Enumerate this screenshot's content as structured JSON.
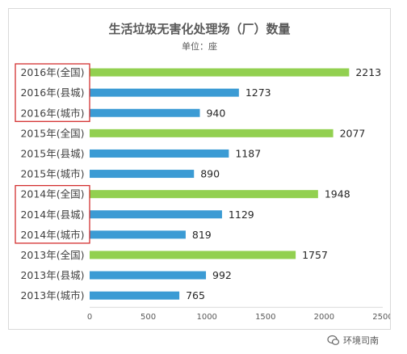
{
  "chart_data": {
    "type": "bar",
    "orientation": "horizontal",
    "title": "生活垃圾无害化处理场（厂）数量",
    "subtitle": "单位：座",
    "categories": [
      "2016年(全国)",
      "2016年(县城)",
      "2016年(城市)",
      "2015年(全国)",
      "2015年(县城)",
      "2015年(城市)",
      "2014年(全国)",
      "2014年(县城)",
      "2014年(城市)",
      "2013年(全国)",
      "2013年(县城)",
      "2013年(城市)"
    ],
    "values": [
      2213,
      1273,
      940,
      2077,
      1187,
      890,
      1948,
      1129,
      819,
      1757,
      992,
      765
    ],
    "bar_colors": [
      "#92d050",
      "#3b9bd4",
      "#3b9bd4",
      "#92d050",
      "#3b9bd4",
      "#3b9bd4",
      "#92d050",
      "#3b9bd4",
      "#3b9bd4",
      "#92d050",
      "#3b9bd4",
      "#3b9bd4"
    ],
    "highlight_groups": [
      [
        0,
        2
      ],
      [
        6,
        8
      ]
    ],
    "highlight_color": "#d32f2f",
    "xlim": [
      0,
      2500
    ],
    "xticks": [
      0,
      500,
      1000,
      1500,
      2000,
      2500
    ],
    "grid": false
  },
  "watermark": {
    "text": "环境司南",
    "icon": "wechat-icon"
  }
}
